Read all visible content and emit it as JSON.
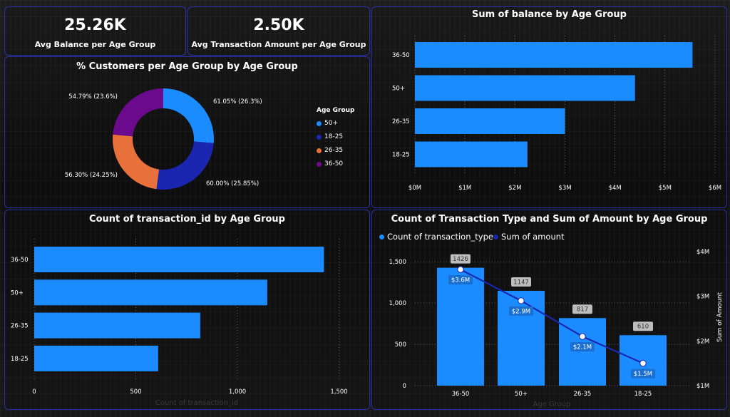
{
  "kpis": [
    {
      "value": "25.26K",
      "label": "Avg Balance per Age Group"
    },
    {
      "value": "2.50K",
      "label": "Avg Transaction Amount per Age Group"
    }
  ],
  "donut": {
    "title": "% Customers per Age Group by Age Group",
    "legend_title": "Age Group",
    "colors": {
      "50+": "#1a8cff",
      "18-25": "#1b26b0",
      "26-35": "#e8703a",
      "36-50": "#6b0a8c"
    },
    "chart_data": {
      "type": "pie",
      "title": "% Customers per Age Group by Age Group",
      "categories": [
        "50+",
        "18-25",
        "26-35",
        "36-50"
      ],
      "values": [
        26.3,
        25.85,
        24.25,
        23.6
      ],
      "labels": [
        "61.05% (26.3%)",
        "60.00% (25.85%)",
        "56.30% (24.25%)",
        "54.79% (23.6%)"
      ],
      "legend": "right"
    }
  },
  "balance_chart": {
    "title": "Sum of balance by Age Group",
    "color": "#1a8cff",
    "chart_data": {
      "type": "bar",
      "orientation": "horizontal",
      "title": "Sum of balance by Age Group",
      "categories": [
        "36-50",
        "50+",
        "26-35",
        "18-25"
      ],
      "values": [
        5.55,
        4.4,
        3.0,
        2.25
      ],
      "units": "M",
      "xlim": [
        0,
        6
      ],
      "xticks": [
        "$0M",
        "$1M",
        "$2M",
        "$3M",
        "$4M",
        "$5M",
        "$6M"
      ]
    }
  },
  "txn_chart": {
    "title": "Count of transaction_id by Age Group",
    "xlabel": "Count of transaction_id",
    "color": "#1a8cff",
    "chart_data": {
      "type": "bar",
      "orientation": "horizontal",
      "title": "Count of transaction_id by Age Group",
      "categories": [
        "36-50",
        "50+",
        "26-35",
        "18-25"
      ],
      "values": [
        1426,
        1147,
        817,
        610
      ],
      "xlim": [
        0,
        1600
      ],
      "xticks": [
        "0",
        "500",
        "1,000",
        "1,500"
      ],
      "xtick_values": [
        0,
        500,
        1000,
        1500
      ]
    }
  },
  "combo_chart": {
    "title": "Count of Transaction Type and Sum of Amount by Age Group",
    "legend": [
      "Count of transaction_type",
      "Sum of amount"
    ],
    "colors": {
      "bar": "#1a8cff",
      "line": "#1b26b0",
      "point": "#ffffff"
    },
    "xlabel": "Age Group",
    "ylabel_right": "Sum of Amount",
    "chart_data": {
      "type": "bar",
      "categories": [
        "36-50",
        "50+",
        "26-35",
        "18-25"
      ],
      "series": [
        {
          "name": "Count of transaction_type",
          "type": "bar",
          "values": [
            1426,
            1147,
            817,
            610
          ],
          "labels": [
            "1426",
            "1147",
            "817",
            "610"
          ]
        },
        {
          "name": "Sum of amount",
          "type": "line",
          "axis": "right",
          "values": [
            3.6,
            2.9,
            2.1,
            1.5
          ],
          "labels": [
            "$3.6M",
            "$2.9M",
            "$2.1M",
            "$1.5M"
          ]
        }
      ],
      "ylim_left": [
        0,
        1500
      ],
      "yticks_left": [
        "0",
        "500",
        "1,000",
        "1,500"
      ],
      "ylim_right": [
        1,
        4
      ],
      "yticks_right": [
        "$1M",
        "$2M",
        "$3M",
        "$4M"
      ],
      "legend": "top-left"
    }
  }
}
